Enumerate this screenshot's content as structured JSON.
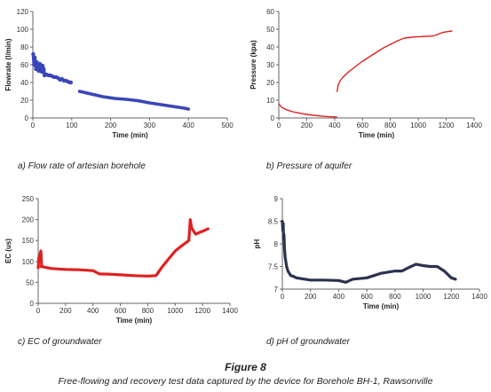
{
  "figure": {
    "title": "Figure 8",
    "caption": "Free-flowing and recovery test data captured by the device for Borehole BH-1, Rawsonville"
  },
  "colors": {
    "flow": "#3a46b8",
    "pressure": "#e02020",
    "ec": "#e02020",
    "ph": "#2b3350",
    "axis": "#666666"
  },
  "chart_data": [
    {
      "type": "scatter",
      "caption": "a)    Flow rate of artesian borehole",
      "xlabel": "Time (min)",
      "ylabel": "Flowrate (l/min)",
      "xlim": [
        0,
        500
      ],
      "ylim": [
        0,
        120
      ],
      "xticks": [
        0,
        100,
        200,
        300,
        400,
        500
      ],
      "yticks": [
        0,
        20,
        40,
        60,
        80,
        100,
        120
      ],
      "series": [
        {
          "segments": [
            {
              "x": [
                1,
                3,
                5,
                8,
                10,
                13,
                15,
                18,
                20,
                23,
                25,
                28,
                30,
                35,
                40,
                45,
                50,
                55,
                60,
                65,
                70,
                75,
                80,
                85,
                90,
                95,
                98
              ],
              "y": [
                72,
                60,
                68,
                55,
                63,
                58,
                53,
                61,
                57,
                52,
                59,
                55,
                48,
                49,
                48,
                48,
                47,
                46,
                46,
                45,
                43,
                44,
                42,
                42,
                41,
                40,
                40
              ]
            },
            {
              "x": [
                120,
                150,
                180,
                210,
                240,
                270,
                300,
                330,
                360,
                390,
                400
              ],
              "y": [
                30,
                27,
                24,
                22,
                21,
                19.5,
                17,
                15,
                13,
                11,
                10
              ]
            }
          ]
        }
      ]
    },
    {
      "type": "line",
      "caption": "b) Pressure of aquifer",
      "xlabel": "Time (min)",
      "ylabel": "Pressure (kpa)",
      "xlim": [
        0,
        1400
      ],
      "ylim": [
        0,
        60
      ],
      "xticks": [
        0,
        200,
        400,
        600,
        800,
        1000,
        1200,
        1400
      ],
      "yticks": [
        0,
        10,
        20,
        30,
        40,
        50,
        60
      ],
      "series": [
        {
          "segments": [
            {
              "x": [
                0,
                20,
                50,
                100,
                150,
                200,
                250,
                300,
                350,
                400,
                415
              ],
              "y": [
                8,
                6,
                4.8,
                3.5,
                2.7,
                2.0,
                1.5,
                1.1,
                0.8,
                0.6,
                0.5
              ]
            },
            {
              "x": [
                418,
                425,
                440,
                460,
                500,
                550,
                600,
                650,
                700,
                750,
                800,
                850,
                900,
                950,
                1000,
                1050,
                1100,
                1120,
                1150,
                1180,
                1220,
                1240
              ],
              "y": [
                15,
                18.5,
                21,
                23,
                26,
                29,
                32,
                34.5,
                37,
                39.5,
                41.5,
                43.5,
                45,
                45.5,
                45.8,
                46,
                46.2,
                46.5,
                47.5,
                48.3,
                48.8,
                49
              ]
            }
          ]
        }
      ]
    },
    {
      "type": "scatter",
      "caption": "c) EC of groundwater",
      "xlabel": "Time (min)",
      "ylabel": "EC (us)",
      "xlim": [
        0,
        1400
      ],
      "ylim": [
        0,
        250
      ],
      "xticks": [
        0,
        200,
        400,
        600,
        800,
        1000,
        1200,
        1400
      ],
      "yticks": [
        0,
        50,
        100,
        150,
        200,
        250
      ],
      "series": [
        {
          "segments": [
            {
              "x": [
                0,
                5,
                10,
                15,
                20,
                25
              ],
              "y": [
                85,
                110,
                100,
                120,
                125,
                90
              ]
            },
            {
              "x": [
                20,
                100,
                200,
                300,
                400,
                450,
                500,
                600,
                700,
                800,
                860,
                900,
                950,
                1000,
                1050,
                1100,
                1110,
                1120,
                1130,
                1150,
                1180,
                1200,
                1240
              ],
              "y": [
                88,
                83,
                81,
                80,
                78,
                70,
                70,
                68,
                66,
                65,
                66,
                85,
                105,
                125,
                138,
                150,
                200,
                180,
                175,
                165,
                170,
                172,
                178
              ]
            }
          ]
        }
      ]
    },
    {
      "type": "scatter",
      "caption": "d) pH of groundwater",
      "xlabel": "Time (min)",
      "ylabel": "pH",
      "xlim": [
        0,
        1400
      ],
      "ylim": [
        7,
        9
      ],
      "xticks": [
        0,
        200,
        400,
        600,
        800,
        1000,
        1200,
        1400
      ],
      "yticks": [
        7,
        7.5,
        8,
        8.5,
        9
      ],
      "series": [
        {
          "segments": [
            {
              "x": [
                0,
                3,
                6,
                9,
                12,
                15,
                20,
                25,
                30,
                40,
                50,
                60,
                80,
                100
              ],
              "y": [
                8.5,
                8.3,
                8.45,
                8.1,
                8.2,
                7.9,
                7.7,
                7.6,
                7.5,
                7.4,
                7.35,
                7.3,
                7.28,
                7.25
              ]
            },
            {
              "x": [
                100,
                200,
                300,
                400,
                450,
                500,
                600,
                700,
                800,
                850,
                900,
                950,
                1000,
                1050,
                1100,
                1150,
                1200,
                1230
              ],
              "y": [
                7.25,
                7.2,
                7.2,
                7.19,
                7.15,
                7.22,
                7.25,
                7.35,
                7.4,
                7.4,
                7.48,
                7.55,
                7.52,
                7.5,
                7.5,
                7.4,
                7.25,
                7.22
              ]
            }
          ]
        }
      ]
    }
  ]
}
